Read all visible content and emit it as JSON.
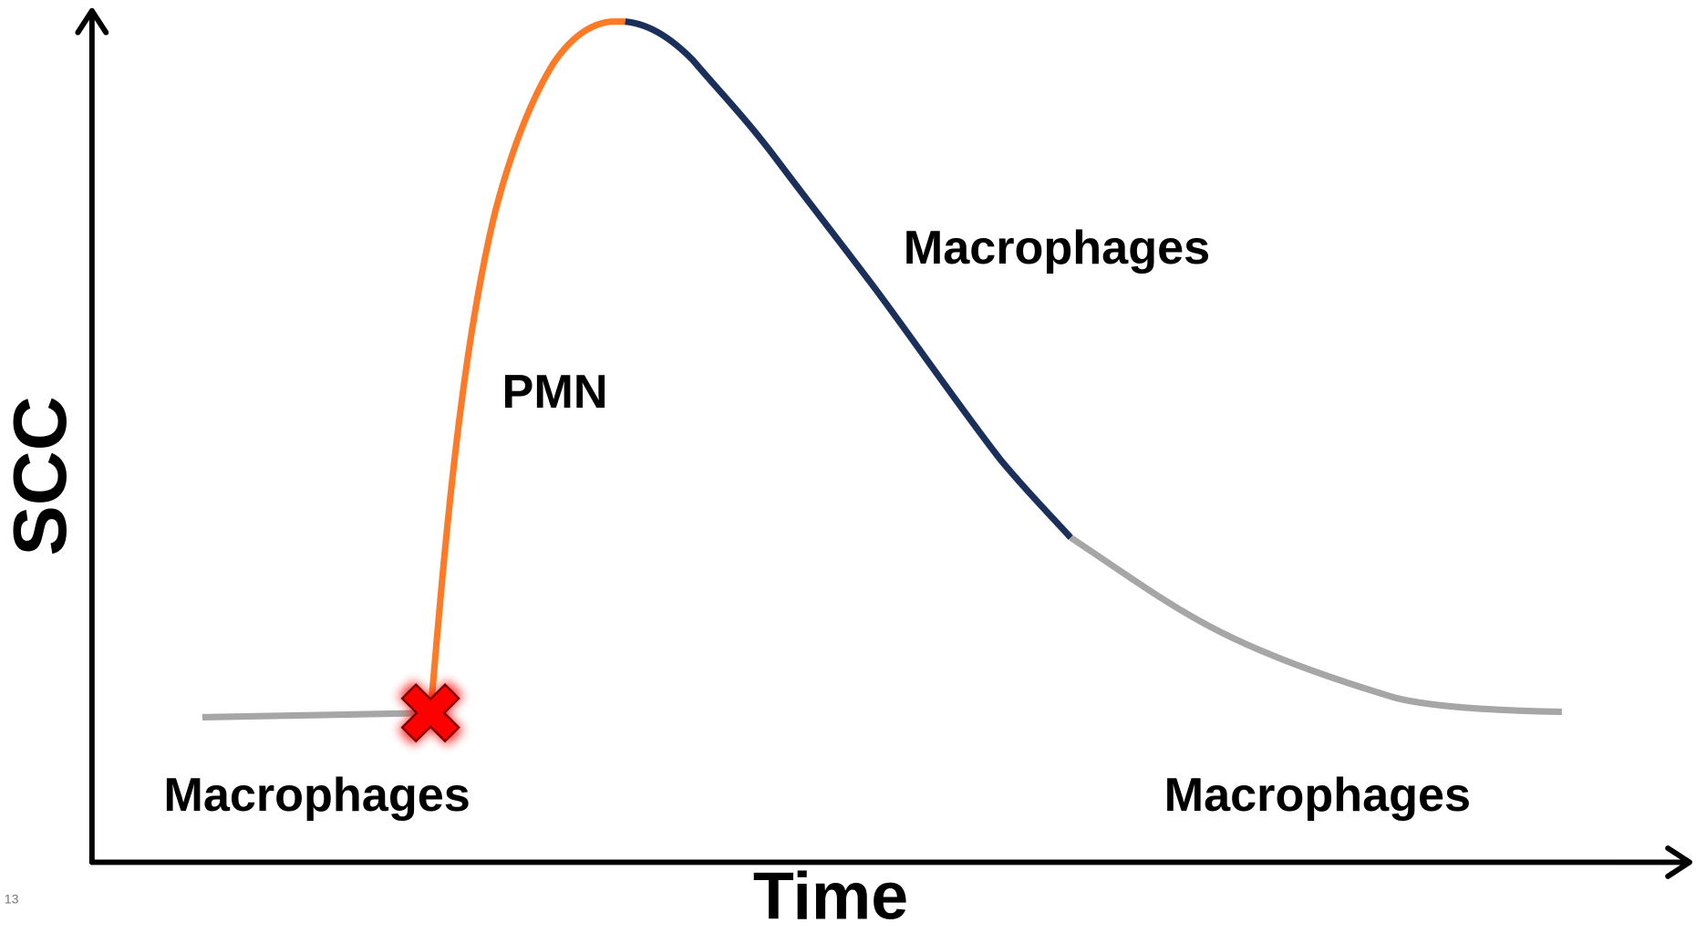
{
  "axes": {
    "y_label": "SCC",
    "x_label": "Time"
  },
  "labels": {
    "pmn": "PMN",
    "macrophages_peak": "Macrophages",
    "macrophages_before": "Macrophages",
    "macrophages_after": "Macrophages"
  },
  "page_number": "13"
}
